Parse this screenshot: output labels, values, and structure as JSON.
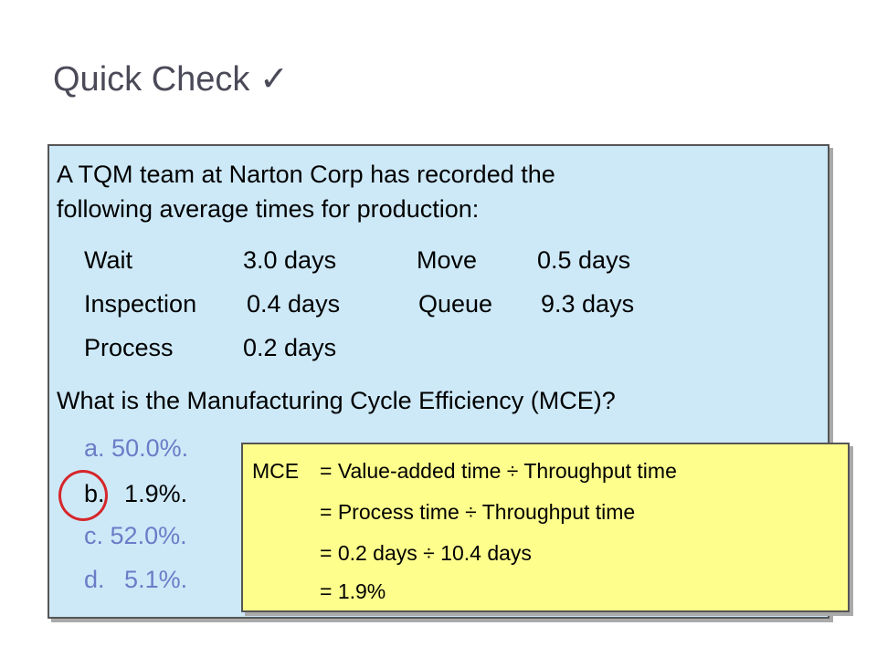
{
  "slide": {
    "title": "Quick Check",
    "title_icon": "✓"
  },
  "problem": {
    "intro_line1": "A TQM team at Narton Corp has recorded the",
    "intro_line2": "following average times for production:",
    "times": [
      {
        "label": "Wait",
        "value": "3.0 days",
        "label2": "Move",
        "value2": "0.5 days"
      },
      {
        "label": "Inspection",
        "value": "0.4 days",
        "label2": "Queue",
        "value2": "9.3 days"
      },
      {
        "label": "Process",
        "value": "0.2 days"
      }
    ],
    "question": "What is the Manufacturing Cycle Efficiency (MCE)?",
    "options": [
      {
        "letter": "a.",
        "value": "50.0%."
      },
      {
        "letter": "b.",
        "value": "1.9%."
      },
      {
        "letter": "c.",
        "value": "52.0%."
      },
      {
        "letter": "d.",
        "value": "5.1%."
      }
    ],
    "correct_option": "b"
  },
  "solution": {
    "lines": [
      {
        "prefix": "MCE",
        "text": "= Value-added time ÷ Throughput time"
      },
      {
        "prefix": "",
        "text": "= Process time ÷ Throughput time"
      },
      {
        "prefix": "",
        "text": "= 0.2 days ÷ 10.4 days"
      },
      {
        "prefix": "",
        "text": "= 1.9%"
      }
    ]
  },
  "colors": {
    "question_bg": "#cde9f8",
    "answer_bg": "#fefe8c",
    "muted_option": "#6b7cc7",
    "highlight_circle": "#d6262b"
  }
}
